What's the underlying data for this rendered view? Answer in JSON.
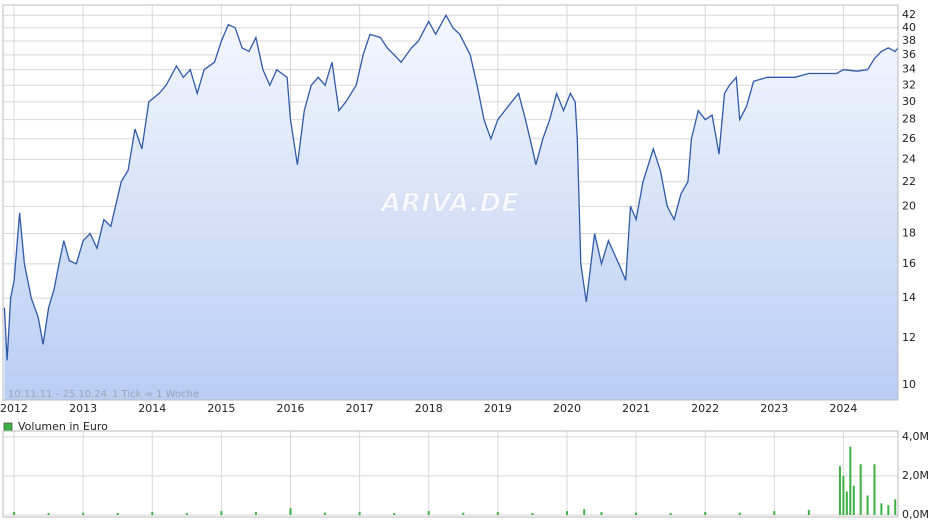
{
  "chart_data": [
    {
      "type": "line",
      "watermark": "ARIVA.DE",
      "annotations": [
        "10.11.11 - 25.10.24",
        "1 Tick = 1 Woche"
      ],
      "log_scale": true,
      "grid": true,
      "xlim": [
        2011.84,
        2024.79
      ],
      "xticks": [
        2012,
        2013,
        2014,
        2015,
        2016,
        2017,
        2018,
        2019,
        2020,
        2021,
        2022,
        2023,
        2024
      ],
      "ylim": [
        9.43,
        43.7
      ],
      "yticks": [
        10,
        12,
        14,
        16,
        18,
        20,
        22,
        24,
        26,
        28,
        30,
        32,
        34,
        36,
        38,
        40,
        42
      ],
      "series": [
        {
          "color": "#2f5aa8",
          "x": [
            2011.86,
            2011.9,
            2011.95,
            2012.0,
            2012.08,
            2012.15,
            2012.25,
            2012.35,
            2012.42,
            2012.5,
            2012.58,
            2012.65,
            2012.72,
            2012.8,
            2012.9,
            2013.0,
            2013.1,
            2013.2,
            2013.3,
            2013.4,
            2013.55,
            2013.65,
            2013.75,
            2013.85,
            2013.95,
            2014.1,
            2014.2,
            2014.35,
            2014.45,
            2014.55,
            2014.65,
            2014.75,
            2014.9,
            2015.0,
            2015.1,
            2015.2,
            2015.3,
            2015.4,
            2015.5,
            2015.6,
            2015.7,
            2015.8,
            2015.95,
            2016.0,
            2016.1,
            2016.2,
            2016.3,
            2016.4,
            2016.5,
            2016.6,
            2016.7,
            2016.8,
            2016.95,
            2017.05,
            2017.15,
            2017.3,
            2017.4,
            2017.5,
            2017.6,
            2017.75,
            2017.85,
            2018.0,
            2018.1,
            2018.25,
            2018.35,
            2018.45,
            2018.6,
            2018.7,
            2018.8,
            2018.9,
            2019.0,
            2019.1,
            2019.2,
            2019.3,
            2019.4,
            2019.5,
            2019.55,
            2019.65,
            2019.75,
            2019.85,
            2019.95,
            2020.05,
            2020.12,
            2020.15,
            2020.2,
            2020.28,
            2020.4,
            2020.5,
            2020.6,
            2020.75,
            2020.85,
            2020.92,
            2021.0,
            2021.1,
            2021.25,
            2021.35,
            2021.45,
            2021.55,
            2021.65,
            2021.75,
            2021.8,
            2021.9,
            2022.0,
            2022.1,
            2022.2,
            2022.28,
            2022.35,
            2022.45,
            2022.5,
            2022.6,
            2022.7,
            2022.9,
            2023.1,
            2023.3,
            2023.5,
            2023.7,
            2023.9,
            2024.0,
            2024.2,
            2024.35,
            2024.45,
            2024.55,
            2024.65,
            2024.75,
            2024.79
          ],
          "values": [
            13.5,
            11,
            14,
            15,
            19.5,
            16,
            14,
            13,
            11.7,
            13.5,
            14.5,
            16,
            17.5,
            16.2,
            16,
            17.5,
            18,
            17,
            19,
            18.5,
            22,
            23,
            27,
            25,
            30,
            31,
            32,
            34.5,
            33,
            34,
            31,
            34,
            35,
            38,
            40.5,
            40,
            37,
            36.5,
            38.5,
            34,
            32,
            34,
            33,
            28,
            23.5,
            29,
            32,
            33,
            32,
            35,
            29,
            30,
            32,
            36,
            39,
            38.5,
            37,
            36,
            35,
            37,
            38,
            41,
            39,
            42,
            40,
            39,
            36,
            32,
            28,
            26,
            28,
            29,
            30,
            31,
            28,
            25,
            23.5,
            26,
            28,
            31,
            29,
            31,
            30,
            26,
            16,
            13.8,
            18,
            16,
            17.5,
            16,
            15,
            20,
            19,
            22,
            25,
            23,
            20,
            19,
            21,
            22,
            26,
            29,
            28,
            28.5,
            24.5,
            31,
            32,
            33,
            28,
            29.5,
            32.5,
            33,
            33,
            33,
            33.5,
            33.5,
            33.5,
            34,
            33.8,
            34,
            35.5,
            36.5,
            37,
            36.5,
            37
          ]
        }
      ]
    },
    {
      "type": "bar",
      "legend": "Volumen in Euro",
      "color": "#3cb043",
      "xlim": [
        2011.84,
        2024.79
      ],
      "ylim": [
        0,
        4.3
      ],
      "yticks": [
        {
          "value": 0,
          "label": "0,0M"
        },
        {
          "value": 2,
          "label": "2,0M"
        },
        {
          "value": 4,
          "label": "4,0M"
        }
      ],
      "series": [
        {
          "x": [
            2012.0,
            2012.5,
            2013.0,
            2013.5,
            2014.0,
            2014.5,
            2015.0,
            2015.5,
            2016.0,
            2016.5,
            2017.0,
            2017.5,
            2018.0,
            2018.5,
            2019.0,
            2019.5,
            2020.0,
            2020.25,
            2020.5,
            2021.0,
            2021.5,
            2022.0,
            2022.5,
            2023.0,
            2023.5,
            2023.95,
            2024.0,
            2024.05,
            2024.1,
            2024.15,
            2024.25,
            2024.35,
            2024.45,
            2024.55,
            2024.65,
            2024.75
          ],
          "values": [
            0.15,
            0.1,
            0.12,
            0.1,
            0.15,
            0.1,
            0.2,
            0.15,
            0.35,
            0.12,
            0.15,
            0.1,
            0.2,
            0.12,
            0.15,
            0.1,
            0.2,
            0.3,
            0.15,
            0.12,
            0.1,
            0.15,
            0.12,
            0.2,
            0.25,
            2.5,
            2.0,
            1.2,
            3.5,
            1.5,
            2.6,
            1.0,
            2.6,
            0.6,
            0.5,
            0.8
          ]
        }
      ]
    }
  ]
}
